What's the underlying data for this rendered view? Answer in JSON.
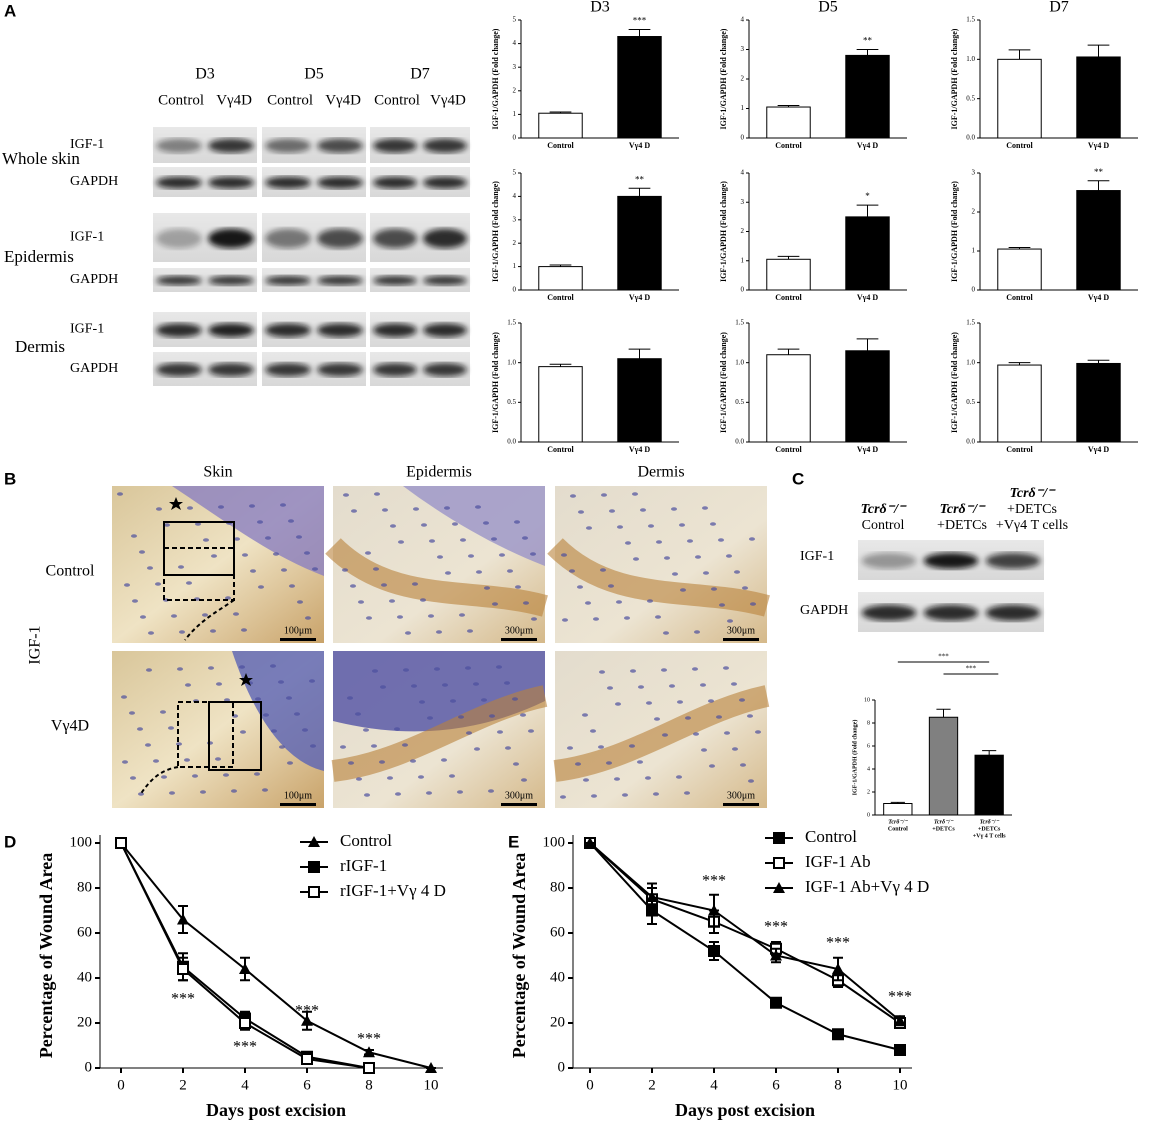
{
  "panel_labels": [
    "A",
    "B",
    "C",
    "D",
    "E"
  ],
  "blot_a": {
    "days": [
      "D3",
      "D5",
      "D7"
    ],
    "groups": [
      "Control",
      "Vγ4D"
    ],
    "tissues": [
      "Whole skin",
      "Epidermis",
      "Dermis"
    ],
    "proteins": [
      "IGF-1",
      "GAPDH"
    ]
  },
  "histology": {
    "columns": [
      "Skin",
      "Epidermis",
      "Dermis"
    ],
    "rows": [
      "Control",
      "Vγ4D"
    ],
    "stain": "IGF-1",
    "scale_bars": [
      "100μm",
      "300μm"
    ]
  },
  "blot_c": {
    "columns": [
      [
        "Tcrδ⁻/⁻",
        "Control"
      ],
      [
        "Tcrδ⁻/⁻",
        "+DETCs"
      ],
      [
        "Tcrδ⁻/⁻",
        "+DETCs",
        "+Vγ4  T cells"
      ]
    ],
    "proteins": [
      "IGF-1",
      "GAPDH"
    ]
  },
  "chart_data": [
    {
      "type": "bar",
      "title": "D3",
      "ylabel": "IGF-1/GAPDH (Fold change)",
      "categories": [
        "Control",
        "Vγ4 D"
      ],
      "values": [
        1.05,
        4.3
      ],
      "errors": [
        0.05,
        0.3
      ],
      "colors": [
        "#ffffff",
        "#000000"
      ],
      "annotation": "***",
      "ylim": [
        0,
        5
      ],
      "yticks": [
        0,
        1,
        2,
        3,
        4,
        5
      ]
    },
    {
      "type": "bar",
      "title": "D5",
      "ylabel": "IGF-1/GAPDH (Fold change)",
      "categories": [
        "Control",
        "Vγ4 D"
      ],
      "values": [
        1.05,
        2.8
      ],
      "errors": [
        0.05,
        0.2
      ],
      "colors": [
        "#ffffff",
        "#000000"
      ],
      "annotation": "**",
      "ylim": [
        0,
        4
      ],
      "yticks": [
        0,
        1,
        2,
        3,
        4
      ]
    },
    {
      "type": "bar",
      "title": "D7",
      "ylabel": "IGF-1/GAPDH (Fold change)",
      "categories": [
        "Control",
        "Vγ4 D"
      ],
      "values": [
        1.0,
        1.03
      ],
      "errors": [
        0.12,
        0.15
      ],
      "colors": [
        "#ffffff",
        "#000000"
      ],
      "ylim": [
        0,
        1.5
      ],
      "yticks": [
        {
          "value": 0,
          "label": "0.0"
        },
        0.5,
        {
          "value": 1,
          "label": "1.0"
        },
        1.5
      ]
    },
    {
      "type": "bar",
      "ylabel": "IGF-1/GAPDH (Fold change)",
      "categories": [
        "Control",
        "Vγ4 D"
      ],
      "values": [
        1.0,
        4.0
      ],
      "errors": [
        0.07,
        0.35
      ],
      "colors": [
        "#ffffff",
        "#000000"
      ],
      "annotation": "**",
      "ylim": [
        0,
        5
      ],
      "yticks": [
        0,
        1,
        2,
        3,
        4,
        5
      ]
    },
    {
      "type": "bar",
      "ylabel": "IGF-1/GAPDH (Fold change)",
      "categories": [
        "Control",
        "Vγ4 D"
      ],
      "values": [
        1.05,
        2.5
      ],
      "errors": [
        0.1,
        0.4
      ],
      "colors": [
        "#ffffff",
        "#000000"
      ],
      "annotation": "*",
      "ylim": [
        0,
        4
      ],
      "yticks": [
        0,
        1,
        2,
        3,
        4
      ]
    },
    {
      "type": "bar",
      "ylabel": "IGF-1/GAPDH (Fold change)",
      "categories": [
        "Control",
        "Vγ4 D"
      ],
      "values": [
        1.05,
        2.55
      ],
      "errors": [
        0.04,
        0.25
      ],
      "colors": [
        "#ffffff",
        "#000000"
      ],
      "annotation": "**",
      "ylim": [
        0,
        3
      ],
      "yticks": [
        0,
        1,
        2,
        3
      ]
    },
    {
      "type": "bar",
      "ylabel": "IGF-1/GAPDH (Fold change)",
      "categories": [
        "Control",
        "Vγ4 D"
      ],
      "values": [
        0.95,
        1.05
      ],
      "errors": [
        0.03,
        0.12
      ],
      "colors": [
        "#ffffff",
        "#000000"
      ],
      "ylim": [
        0,
        1.5
      ],
      "yticks": [
        {
          "value": 0,
          "label": "0.0"
        },
        0.5,
        {
          "value": 1,
          "label": "1.0"
        },
        1.5
      ]
    },
    {
      "type": "bar",
      "ylabel": "IGF-1/GAPDH (Fold change)",
      "categories": [
        "Control",
        "Vγ4 D"
      ],
      "values": [
        1.1,
        1.15
      ],
      "errors": [
        0.07,
        0.15
      ],
      "colors": [
        "#ffffff",
        "#000000"
      ],
      "ylim": [
        0,
        1.5
      ],
      "yticks": [
        {
          "value": 0,
          "label": "0.0"
        },
        0.5,
        {
          "value": 1,
          "label": "1.0"
        },
        1.5
      ]
    },
    {
      "type": "bar",
      "ylabel": "IGF-1/GAPDH (Fold change)",
      "categories": [
        "Control",
        "Vγ4 D"
      ],
      "values": [
        0.97,
        0.99
      ],
      "errors": [
        0.03,
        0.04
      ],
      "colors": [
        "#ffffff",
        "#000000"
      ],
      "ylim": [
        0,
        1.5
      ],
      "yticks": [
        {
          "value": 0,
          "label": "0.0"
        },
        0.5,
        {
          "value": 1,
          "label": "1.0"
        },
        1.5
      ]
    },
    {
      "type": "bar",
      "ylabel": "IGF-1/GAPDH (Fold change)",
      "categories": [
        [
          "Tcrδ⁻/⁻",
          "Control"
        ],
        [
          "Tcrδ⁻/⁻",
          "+DETCs"
        ],
        [
          "Tcrδ⁻/⁻",
          "+DETCs",
          "+Vγ 4 T cells"
        ]
      ],
      "values": [
        1.0,
        8.5,
        5.2
      ],
      "errors": [
        0.1,
        0.7,
        0.4
      ],
      "colors": [
        "#ffffff",
        "#808080",
        "#000000"
      ],
      "annotations": [
        "***",
        "***"
      ],
      "ylim": [
        0,
        10
      ],
      "yticks": [
        0,
        2,
        4,
        6,
        8,
        10
      ]
    },
    {
      "type": "line",
      "xlabel": "Days post excision",
      "ylabel": "Percentage of Wound Area",
      "x": [
        0,
        2,
        4,
        6,
        8,
        10
      ],
      "xlim": [
        0,
        10
      ],
      "xticks": [
        0,
        2,
        4,
        6,
        8,
        10
      ],
      "ylim": [
        0,
        100
      ],
      "yticks": [
        0,
        20,
        40,
        60,
        80,
        100
      ],
      "series": [
        {
          "name": "Control",
          "marker": "triangle",
          "color": "#000000",
          "values": [
            100,
            66,
            44,
            21,
            7,
            0
          ],
          "errors": [
            0,
            6,
            5,
            4,
            1,
            0
          ]
        },
        {
          "name": "rIGF-1",
          "marker": "square",
          "color": "#000000",
          "values": [
            100,
            45,
            22,
            5,
            0,
            null
          ],
          "errors": [
            0,
            6,
            3,
            2,
            1,
            null
          ]
        },
        {
          "name": "rIGF-1+Vγ 4 D",
          "marker": "open-square",
          "color": "#000000",
          "values": [
            100,
            44,
            20,
            4,
            0,
            null
          ],
          "errors": [
            0,
            5,
            3,
            2,
            0,
            null
          ]
        }
      ],
      "annotations": [
        {
          "x": 2,
          "text": "***"
        },
        {
          "x": 4,
          "text": "***"
        },
        {
          "x": 6,
          "text": "***"
        },
        {
          "x": 8,
          "text": "***"
        }
      ]
    },
    {
      "type": "line",
      "xlabel": "Days post excision",
      "ylabel": "Percentage of Wound Area",
      "x": [
        0,
        2,
        4,
        6,
        8,
        10
      ],
      "xlim": [
        0,
        10
      ],
      "xticks": [
        0,
        2,
        4,
        6,
        8,
        10
      ],
      "ylim": [
        0,
        100
      ],
      "yticks": [
        0,
        20,
        40,
        60,
        80,
        100
      ],
      "series": [
        {
          "name": "Control",
          "marker": "square",
          "color": "#000000",
          "values": [
            100,
            70,
            52,
            29,
            15,
            8
          ],
          "errors": [
            0,
            6,
            4,
            2,
            2,
            1
          ]
        },
        {
          "name": "IGF-1 Ab",
          "marker": "open-square",
          "color": "#000000",
          "values": [
            100,
            75,
            65,
            53,
            39,
            20
          ],
          "errors": [
            0,
            5,
            5,
            3,
            3,
            2
          ]
        },
        {
          "name": "IGF-1 Ab+Vγ 4 D",
          "marker": "triangle",
          "color": "#000000",
          "values": [
            100,
            76,
            70,
            50,
            44,
            21
          ],
          "errors": [
            0,
            6,
            7,
            3,
            5,
            2
          ]
        }
      ],
      "annotations": [
        {
          "x": 4,
          "text": "***"
        },
        {
          "x": 6,
          "text": "***"
        },
        {
          "x": 8,
          "text": "***"
        },
        {
          "x": 10,
          "text": "***"
        }
      ]
    }
  ]
}
